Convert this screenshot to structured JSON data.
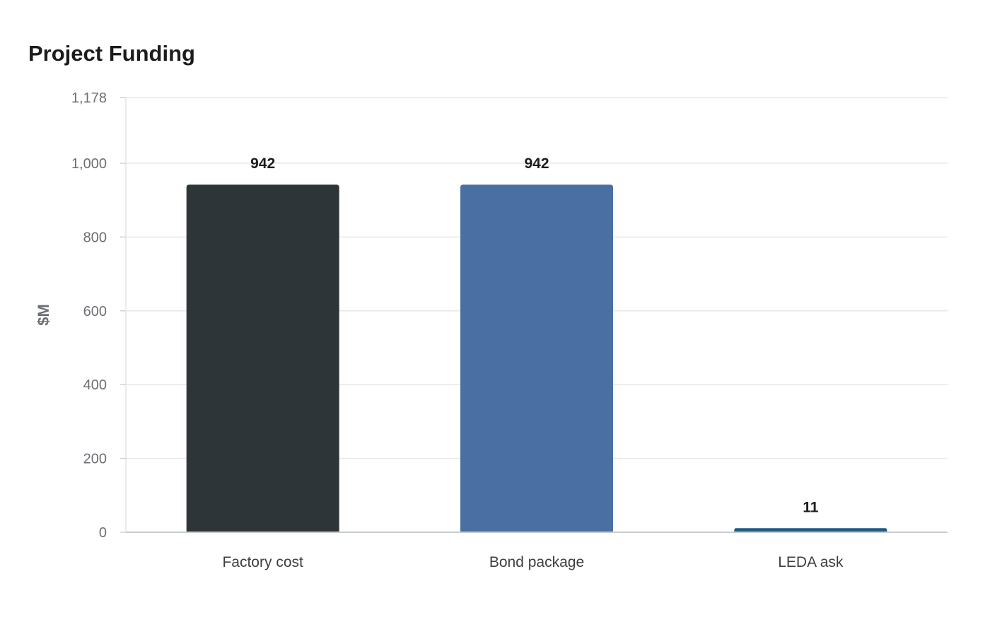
{
  "chart_data": {
    "type": "bar",
    "title": "Project Funding",
    "xlabel": "",
    "ylabel": "$M",
    "categories": [
      "Factory cost",
      "Bond package",
      "LEDA ask"
    ],
    "values": [
      942,
      942,
      11
    ],
    "data_labels": [
      "942",
      "942",
      "11"
    ],
    "bar_colors": [
      "#2e3538",
      "#4a6fa3",
      "#1f5a82"
    ],
    "ylim": [
      0,
      1178
    ],
    "yticks": [
      0,
      200,
      400,
      600,
      800,
      1000,
      1178
    ],
    "ytick_labels": [
      "0",
      "200",
      "400",
      "600",
      "800",
      "1,000",
      "1,178"
    ],
    "grid": true,
    "legend": "none"
  }
}
